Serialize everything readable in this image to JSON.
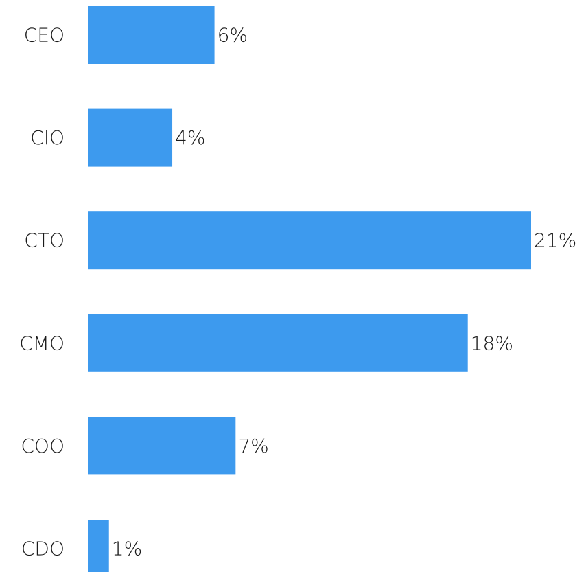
{
  "chart_data": {
    "type": "bar",
    "orientation": "horizontal",
    "categories": [
      "CEO",
      "CIO",
      "CTO",
      "CMO",
      "COO",
      "CDO"
    ],
    "values": [
      6,
      4,
      21,
      18,
      7,
      1
    ],
    "value_labels": [
      "6%",
      "4%",
      "21%",
      "18%",
      "7%",
      "1%"
    ],
    "unit": "%",
    "title": "",
    "xlabel": "",
    "ylabel": "",
    "xlim": [
      0,
      21
    ],
    "grid": false,
    "legend": "none",
    "bar_color": "#3d9aee"
  }
}
